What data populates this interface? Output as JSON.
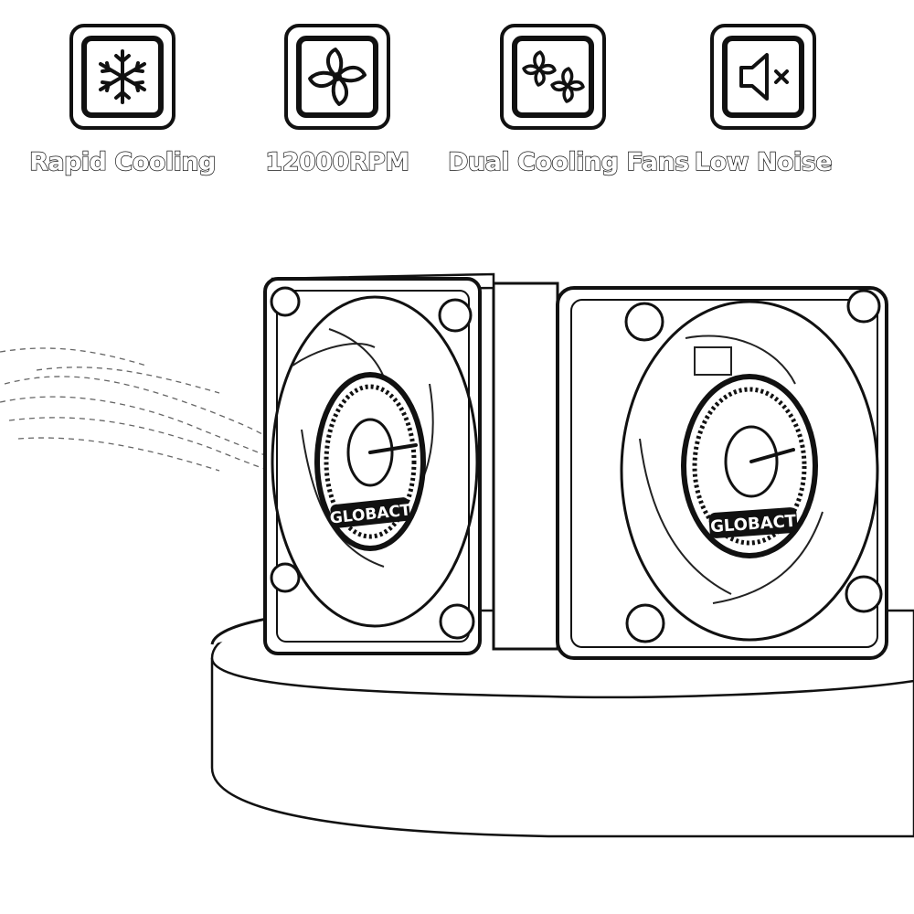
{
  "features": [
    {
      "icon": "snowflake-icon",
      "label": "Rapid Cooling"
    },
    {
      "icon": "fan-icon",
      "label": "12000RPM"
    },
    {
      "icon": "dual-fan-icon",
      "label": "Dual Cooling Fans"
    },
    {
      "icon": "mute-icon",
      "label": "Low Noise"
    }
  ],
  "product": {
    "brand_text": "GLOBACT"
  }
}
